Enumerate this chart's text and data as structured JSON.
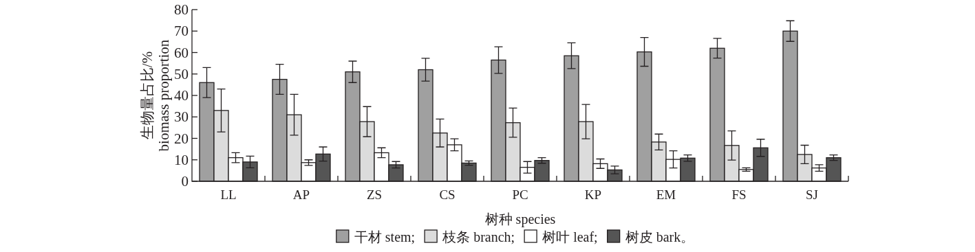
{
  "chart_data": {
    "type": "bar",
    "xlabel": "树种 species",
    "ylabel": "生物量占比/%\nbiomass proportion",
    "categories": [
      "LL",
      "AP",
      "ZS",
      "CS",
      "PC",
      "KP",
      "EM",
      "FS",
      "SJ"
    ],
    "ylim": [
      0,
      80
    ],
    "yticks": [
      0,
      10,
      20,
      30,
      40,
      50,
      60,
      70,
      80
    ],
    "grid": false,
    "legend": "bottom",
    "series": [
      {
        "name": "干材 stem;",
        "color": "#a0a0a0",
        "values": [
          46,
          47.5,
          51,
          52,
          56.5,
          58.5,
          60.3,
          62,
          70
        ],
        "errors": [
          7,
          7,
          5,
          5.3,
          6.2,
          6,
          6.7,
          4.6,
          4.8
        ]
      },
      {
        "name": "枝条 branch;",
        "color": "#dcdcdc",
        "values": [
          33,
          31,
          27.8,
          22.5,
          27.3,
          27.8,
          18.3,
          16.7,
          12.5
        ],
        "errors": [
          10,
          9.5,
          7,
          6.5,
          6.8,
          8,
          3.7,
          6.8,
          4.3
        ]
      },
      {
        "name": "树叶 leaf;",
        "color": "#ffffff",
        "values": [
          11,
          8.7,
          13.3,
          17,
          6.5,
          8.2,
          10.2,
          5.5,
          6.2
        ],
        "errors": [
          2.3,
          1.3,
          2.3,
          2.8,
          2.7,
          2.2,
          4,
          0.8,
          1.5
        ]
      },
      {
        "name": "树皮 bark。",
        "color": "#555555",
        "values": [
          9,
          12.7,
          7.7,
          8.5,
          9.7,
          5.3,
          10.8,
          15.6,
          11
        ],
        "errors": [
          2.7,
          3.3,
          1.5,
          1,
          1.3,
          1.8,
          1.5,
          4,
          1.3
        ]
      }
    ]
  }
}
